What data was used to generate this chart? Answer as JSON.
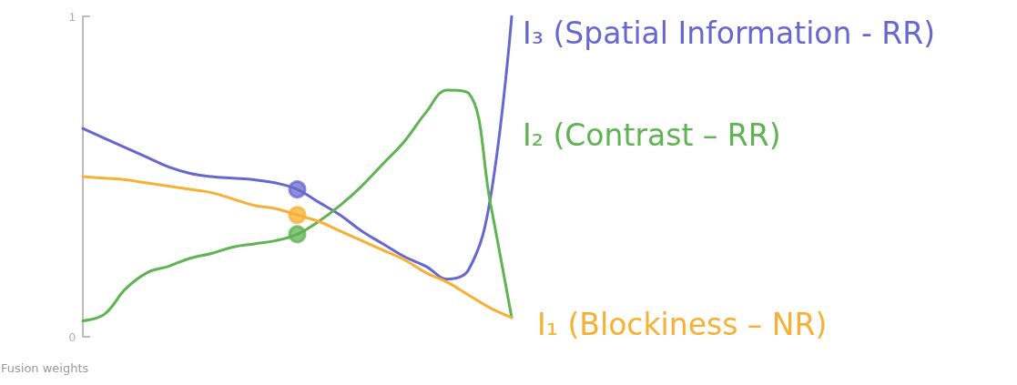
{
  "chart_data": {
    "type": "line",
    "ylabel": "Fusion weights",
    "ylim": [
      0,
      1
    ],
    "yticks": [
      0,
      1
    ],
    "grid": false,
    "legend": false,
    "marker": "none",
    "line_style": "solid",
    "categories": [
      null,
      null,
      null,
      null,
      null,
      null,
      null,
      null,
      null,
      null,
      null,
      null,
      null,
      null,
      null,
      null,
      null,
      null,
      null,
      null,
      null
    ],
    "series": [
      {
        "name": "I₃ (Spatial Information - RR)",
        "color": "#6767cf",
        "values": [
          0.65,
          0.62,
          0.59,
          0.56,
          0.53,
          0.51,
          0.5,
          0.495,
          0.49,
          0.48,
          0.46,
          0.42,
          0.38,
          0.33,
          0.29,
          0.25,
          0.22,
          0.18,
          0.21,
          0.43,
          1.0
        ]
      },
      {
        "name": "I₂ (Contrast – RR)",
        "color": "#5fb352",
        "values": [
          0.05,
          0.07,
          0.15,
          0.2,
          0.22,
          0.245,
          0.26,
          0.28,
          0.29,
          0.3,
          0.32,
          0.36,
          0.41,
          0.47,
          0.54,
          0.61,
          0.7,
          0.77,
          0.76,
          0.42,
          0.06
        ]
      },
      {
        "name": "I₁ (Blockiness – NR)",
        "color": "#f7b033",
        "values": [
          0.5,
          0.495,
          0.49,
          0.48,
          0.47,
          0.46,
          0.45,
          0.43,
          0.41,
          0.4,
          0.38,
          0.36,
          0.33,
          0.3,
          0.27,
          0.24,
          0.2,
          0.17,
          0.13,
          0.09,
          0.06
        ]
      },
      {
        "type": "scatter",
        "marker": "circle",
        "color": "#6767cf",
        "values": [
          null,
          null,
          null,
          null,
          null,
          null,
          null,
          null,
          null,
          null,
          0.46,
          null,
          null,
          null,
          null,
          null,
          null,
          null,
          null,
          null,
          null
        ]
      },
      {
        "type": "scatter",
        "marker": "circle",
        "color": "#f7b033",
        "values": [
          null,
          null,
          null,
          null,
          null,
          null,
          null,
          null,
          null,
          null,
          0.38,
          null,
          null,
          null,
          null,
          null,
          null,
          null,
          null,
          null,
          null
        ]
      },
      {
        "type": "scatter",
        "marker": "circle",
        "color": "#5fb352",
        "values": [
          null,
          null,
          null,
          null,
          null,
          null,
          null,
          null,
          null,
          null,
          0.32,
          null,
          null,
          null,
          null,
          null,
          null,
          null,
          null,
          null,
          null
        ]
      }
    ]
  }
}
